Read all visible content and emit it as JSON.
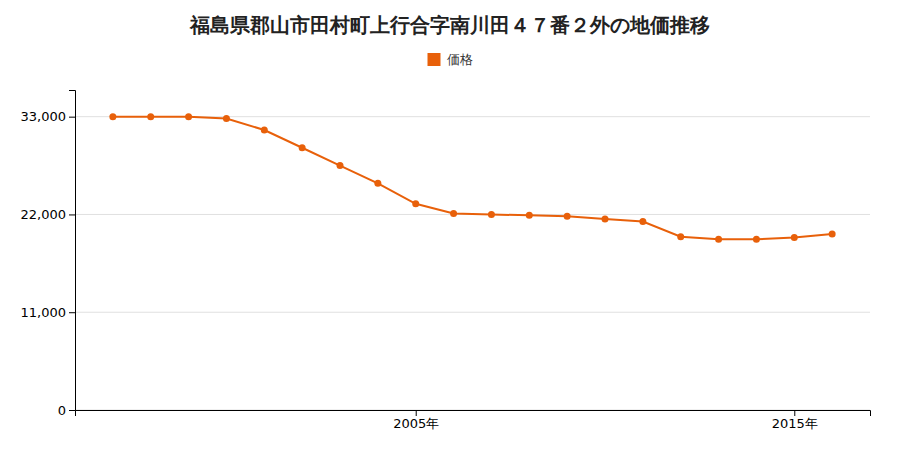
{
  "chart_data": {
    "type": "line",
    "title": "福島県郡山市田村町上行合字南川田４７番２外の地価推移",
    "x": [
      1997,
      1998,
      1999,
      2000,
      2001,
      2002,
      2003,
      2004,
      2005,
      2006,
      2007,
      2008,
      2009,
      2010,
      2011,
      2012,
      2013,
      2014,
      2015,
      2016
    ],
    "series": [
      {
        "name": "価格",
        "color": "#e8600a",
        "marker": "circle",
        "values": [
          33000,
          33000,
          33000,
          32800,
          31500,
          29500,
          27500,
          25500,
          23200,
          22100,
          22000,
          21900,
          21800,
          21500,
          21200,
          19500,
          19200,
          19200,
          19400,
          19800
        ]
      }
    ],
    "xlim": [
      1996,
      2017
    ],
    "xticks": [
      {
        "value": 2005,
        "label": "2005年"
      },
      {
        "value": 2015,
        "label": "2015年"
      }
    ],
    "ylim": [
      0,
      36000
    ],
    "yticks": [
      0,
      {
        "value": 11000,
        "label": "11,000"
      },
      {
        "value": 22000,
        "label": "22,000"
      },
      {
        "value": 33000,
        "label": "33,000"
      }
    ],
    "grid": true,
    "legend": "top"
  }
}
